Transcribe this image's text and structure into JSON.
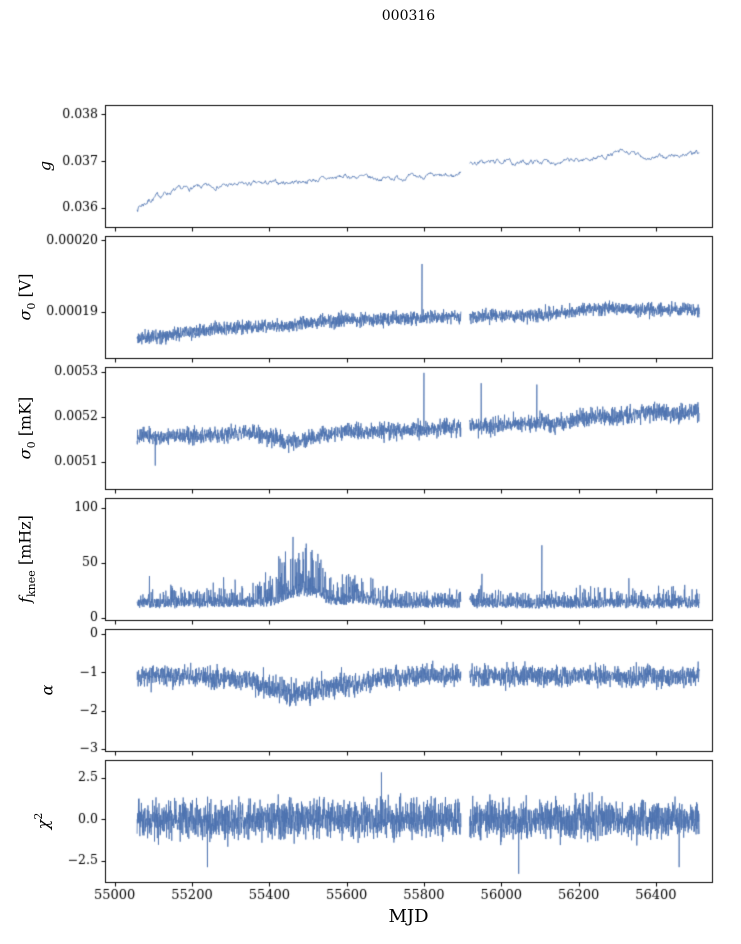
{
  "title": "000316",
  "xlabel": "MJD",
  "accent_color": "#4c72b0",
  "axis_color": "#000000",
  "chart_data": {
    "type": "line",
    "title": "000316",
    "xlabel": "MJD",
    "legend": "none",
    "grid": false,
    "xlim": [
      54975,
      56545
    ],
    "x_data_range": [
      55058,
      56512
    ],
    "xticks": [
      55000,
      55200,
      55400,
      55600,
      55800,
      56000,
      56200,
      56400
    ],
    "xtick_labels": [
      "55000",
      "55200",
      "55400",
      "55600",
      "55800",
      "56000",
      "56200",
      "56400"
    ],
    "gap": [
      55896,
      55918
    ],
    "panels": [
      {
        "label": {
          "main": "g",
          "sub": "",
          "sup": "",
          "unit": ""
        },
        "ylim": [
          0.0356,
          0.0382
        ],
        "yticks": [
          0.036,
          0.037,
          0.038
        ],
        "ytick_labels": [
          "0.036",
          "0.037",
          "0.038"
        ],
        "mode": "line",
        "n": 1000,
        "seed": 7,
        "gap": true,
        "trend": {
          "x": [
            55060,
            55090,
            55130,
            55180,
            55240,
            55300,
            55360,
            55420,
            55480,
            55540,
            55600,
            55640,
            55680,
            55720,
            55760,
            55800,
            55840,
            55880,
            55920,
            55960,
            56000,
            56040,
            56080,
            56120,
            56160,
            56200,
            56240,
            56280,
            56310,
            56340,
            56380,
            56420,
            56460,
            56510
          ],
          "y": [
            0.03602,
            0.03618,
            0.03632,
            0.03641,
            0.03646,
            0.03649,
            0.03652,
            0.03654,
            0.03657,
            0.03662,
            0.03668,
            0.03666,
            0.03663,
            0.03665,
            0.03666,
            0.03668,
            0.03667,
            0.03669,
            0.03696,
            0.03698,
            0.037,
            0.03696,
            0.03699,
            0.037,
            0.03699,
            0.03702,
            0.03707,
            0.03713,
            0.0372,
            0.03716,
            0.03707,
            0.03709,
            0.03713,
            0.03717
          ]
        },
        "noise": {
          "x": [
            55060,
            55120,
            55300,
            56510
          ],
          "amp": [
            0.00013,
            9e-05,
            8e-05,
            8e-05
          ]
        },
        "spikes": []
      },
      {
        "label": {
          "main": "σ",
          "sub": "0",
          "sup": "",
          "unit": " [V]"
        },
        "ylim": [
          0.0001836,
          0.0002006
        ],
        "yticks": [
          0.00019,
          0.0002
        ],
        "ytick_labels": [
          "0.00019",
          "0.00020"
        ],
        "mode": "band",
        "n": 2600,
        "seed": 11,
        "gap": true,
        "trend": {
          "x": [
            55060,
            55120,
            55200,
            55260,
            55300,
            55360,
            55420,
            55470,
            55520,
            55560,
            55600,
            55650,
            55700,
            55750,
            55800,
            55850,
            55900,
            55950,
            56000,
            56050,
            56100,
            56150,
            56200,
            56240,
            56280,
            56320,
            56360,
            56400,
            56450,
            56510
          ],
          "y": [
            0.0001863,
            0.0001868,
            0.0001872,
            0.0001876,
            0.0001878,
            0.0001879,
            0.000188,
            0.0001883,
            0.0001886,
            0.0001887,
            0.0001889,
            0.0001889,
            0.000189,
            0.000189,
            0.0001892,
            0.0001894,
            0.0001894,
            0.0001895,
            0.0001895,
            0.0001895,
            0.0001896,
            0.0001898,
            0.0001901,
            0.0001905,
            0.0001906,
            0.0001904,
            0.0001903,
            0.0001903,
            0.0001904,
            0.0001905
          ]
        },
        "noise": {
          "x": [
            55060,
            56510
          ],
          "amp": [
            1.3e-06,
            1.3e-06
          ]
        },
        "spikes": [
          {
            "x": 55795,
            "y": 0.0001967
          }
        ]
      },
      {
        "label": {
          "main": "σ",
          "sub": "0",
          "sup": "",
          "unit": " [mK]"
        },
        "ylim": [
          0.00504,
          0.005311
        ],
        "yticks": [
          0.0051,
          0.0052,
          0.0053
        ],
        "ytick_labels": [
          "0.0051",
          "0.0052",
          "0.0053"
        ],
        "mode": "band",
        "n": 2600,
        "seed": 13,
        "gap": true,
        "trend": {
          "x": [
            55060,
            55120,
            55180,
            55240,
            55300,
            55360,
            55410,
            55450,
            55490,
            55530,
            55570,
            55610,
            55650,
            55700,
            55750,
            55800,
            55850,
            55900,
            55950,
            56000,
            56050,
            56100,
            56150,
            56200,
            56250,
            56300,
            56350,
            56400,
            56450,
            56510
          ],
          "y": [
            0.00516,
            0.005155,
            0.005158,
            0.00516,
            0.005162,
            0.005165,
            0.005155,
            0.005145,
            0.005148,
            0.005158,
            0.005165,
            0.00517,
            0.005165,
            0.005168,
            0.005172,
            0.00517,
            0.005175,
            0.00518,
            0.005178,
            0.00518,
            0.005185,
            0.005188,
            0.005185,
            0.005195,
            0.0052,
            0.0052,
            0.005205,
            0.00521,
            0.005208,
            0.00521
          ]
        },
        "noise": {
          "x": [
            55060,
            55400,
            55600,
            56000,
            56510
          ],
          "amp": [
            2.2e-05,
            2.5e-05,
            2.6e-05,
            2.6e-05,
            2.8e-05
          ]
        },
        "spikes": [
          {
            "x": 55105,
            "y": 0.005092
          },
          {
            "x": 55800,
            "y": 0.005298
          },
          {
            "x": 55948,
            "y": 0.005275
          },
          {
            "x": 56092,
            "y": 0.005272
          }
        ]
      },
      {
        "label": {
          "main": "f",
          "sub": "knee",
          "sup": "",
          "unit": " [mHz]"
        },
        "ylim": [
          -2,
          109
        ],
        "yticks": [
          0,
          50,
          100
        ],
        "ytick_labels": [
          "0",
          "50",
          "100"
        ],
        "mode": "spiky",
        "n": 2600,
        "seed": 17,
        "gap": true,
        "spike_small": 4.5,
        "trend": {
          "x": [
            55060,
            55200,
            55300,
            55380,
            55420,
            55450,
            55480,
            55520,
            55560,
            55600,
            55630,
            55660,
            55700,
            55760,
            55850,
            55950,
            56050,
            56150,
            56250,
            56350,
            56450,
            56510
          ],
          "y": [
            13,
            13,
            14,
            14,
            16,
            22,
            24,
            22,
            16,
            15,
            18,
            15,
            13,
            13,
            13,
            13,
            13,
            13,
            13,
            13,
            13,
            13
          ]
        },
        "noise": {
          "x": [
            55060,
            55250,
            55290,
            55340,
            55380,
            55410,
            55430,
            55450,
            55470,
            55500,
            55530,
            55560,
            55590,
            55610,
            55630,
            55660,
            55700,
            55760,
            55850,
            56510
          ],
          "amp": [
            14,
            14,
            22,
            18,
            20,
            34,
            50,
            58,
            54,
            44,
            36,
            30,
            26,
            32,
            28,
            22,
            16,
            14,
            13,
            13
          ]
        },
        "spikes": [
          {
            "x": 55090,
            "y": 38
          },
          {
            "x": 55255,
            "y": 32
          },
          {
            "x": 55950,
            "y": 40
          },
          {
            "x": 56105,
            "y": 66
          },
          {
            "x": 56330,
            "y": 36
          }
        ]
      },
      {
        "label": {
          "main": "α",
          "sub": "",
          "sup": "",
          "unit": ""
        },
        "ylim": [
          -3.05,
          0.13
        ],
        "yticks": [
          0,
          -1,
          -2,
          -3
        ],
        "ytick_labels": [
          "0",
          "−1",
          "−2",
          "−3"
        ],
        "mode": "band",
        "n": 2600,
        "seed": 19,
        "gap": true,
        "trend": {
          "x": [
            55060,
            55150,
            55250,
            55330,
            55380,
            55420,
            55460,
            55500,
            55540,
            55580,
            55620,
            55660,
            55700,
            55800,
            55900,
            56000,
            56100,
            56200,
            56300,
            56400,
            56510
          ],
          "y": [
            -1.1,
            -1.1,
            -1.12,
            -1.18,
            -1.32,
            -1.48,
            -1.55,
            -1.52,
            -1.42,
            -1.3,
            -1.38,
            -1.22,
            -1.1,
            -1.1,
            -1.08,
            -1.1,
            -1.1,
            -1.1,
            -1.1,
            -1.1,
            -1.1
          ]
        },
        "noise": {
          "x": [
            55060,
            55300,
            55400,
            55550,
            55650,
            56510
          ],
          "amp": [
            0.38,
            0.4,
            0.45,
            0.45,
            0.38,
            0.38
          ]
        },
        "spikes": []
      },
      {
        "label": {
          "main": "χ",
          "sub": "",
          "sup": "2",
          "unit": ""
        },
        "ylim": [
          -3.8,
          3.6
        ],
        "yticks": [
          2.5,
          0.0,
          -2.5
        ],
        "ytick_labels": [
          "2.5",
          "0.0",
          "−2.5"
        ],
        "mode": "band",
        "n": 3000,
        "seed": 23,
        "gap": true,
        "trend": {
          "x": [
            55060,
            56510
          ],
          "y": [
            0,
            0
          ]
        },
        "noise": {
          "x": [
            55060,
            56510
          ],
          "amp": [
            1.55,
            1.55
          ]
        },
        "spikes": [
          {
            "x": 55240,
            "y": -2.9
          },
          {
            "x": 55690,
            "y": 2.85
          },
          {
            "x": 56045,
            "y": -3.3
          },
          {
            "x": 56460,
            "y": -2.9
          }
        ]
      }
    ]
  }
}
